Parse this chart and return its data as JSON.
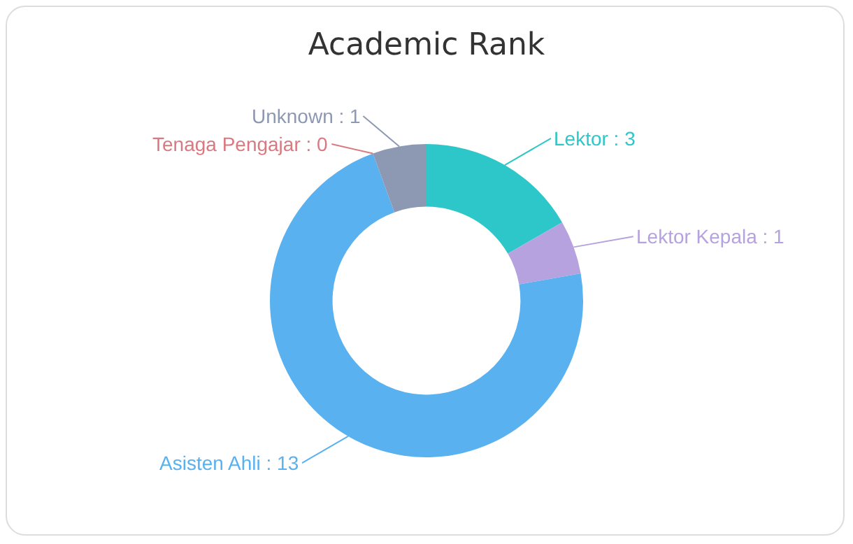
{
  "chart_data": {
    "type": "donut",
    "title": "Academic Rank",
    "categories": [
      "Lektor",
      "Lektor Kepala",
      "Asisten Ahli",
      "Tenaga Pengajar",
      "Unknown"
    ],
    "values": [
      3,
      1,
      13,
      0,
      1
    ],
    "colors": [
      "#2ec7c9",
      "#b6a2de",
      "#5ab1ef",
      "#d87a80",
      "#8d98b3"
    ],
    "value_labels": [
      ": 3",
      ": 1",
      ": 13",
      ": 0",
      ": 1"
    ]
  }
}
